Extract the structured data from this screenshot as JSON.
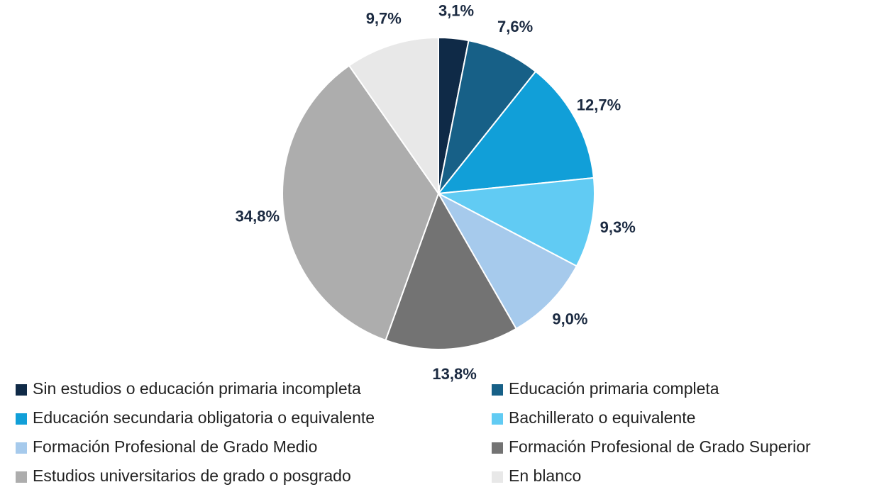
{
  "chart_data": {
    "type": "pie",
    "categories": [
      "Sin estudios o educación primaria incompleta",
      "Educación primaria completa",
      "Educación secundaria obligatoria o equivalente",
      "Bachillerato o equivalente",
      "Formación Profesional de Grado Medio",
      "Formación Profesional de Grado Superior",
      "Estudios universitarios de grado o posgrado",
      "En blanco"
    ],
    "values": [
      3.1,
      7.6,
      12.7,
      9.3,
      9.0,
      13.8,
      34.8,
      9.7
    ],
    "value_labels": [
      "3,1%",
      "7,6%",
      "12,7%",
      "9,3%",
      "9,0%",
      "13,8%",
      "34,8%",
      "9,7%"
    ],
    "colors": [
      "#0f2a47",
      "#176087",
      "#119fd8",
      "#61cbf3",
      "#a6caec",
      "#737373",
      "#adadad",
      "#e8e8e8"
    ],
    "legend": "bottom"
  }
}
